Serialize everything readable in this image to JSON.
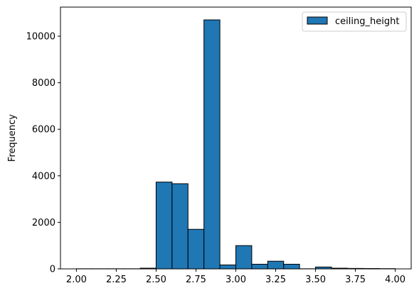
{
  "chart_data": {
    "type": "bar",
    "subtype": "histogram",
    "ylabel": "Frequency",
    "xlim": [
      1.9,
      4.1
    ],
    "ylim": [
      0,
      11250
    ],
    "xticks": [
      "2.00",
      "2.25",
      "2.50",
      "2.75",
      "3.00",
      "3.25",
      "3.50",
      "3.75",
      "4.00"
    ],
    "xtick_values": [
      2.0,
      2.25,
      2.5,
      2.75,
      3.0,
      3.25,
      3.5,
      3.75,
      4.0
    ],
    "yticks": [
      "0",
      "2000",
      "4000",
      "6000",
      "8000",
      "10000"
    ],
    "ytick_values": [
      0,
      2000,
      4000,
      6000,
      8000,
      10000
    ],
    "bin_edges": [
      2.0,
      2.1,
      2.2,
      2.3,
      2.4,
      2.5,
      2.6,
      2.7,
      2.8,
      2.9,
      3.0,
      3.1,
      3.2,
      3.3,
      3.4,
      3.5,
      3.6,
      3.7,
      3.8,
      3.9,
      4.0
    ],
    "series": [
      {
        "name": "ceiling_height",
        "values": [
          5,
          5,
          5,
          5,
          30,
          3730,
          3660,
          1700,
          10700,
          170,
          1000,
          200,
          330,
          200,
          5,
          80,
          30,
          20,
          15,
          10
        ]
      }
    ],
    "grid": false,
    "legend_position": "top-right",
    "colors": {
      "bar_fill": "#1f77b4",
      "bar_edge": "#000000"
    }
  }
}
